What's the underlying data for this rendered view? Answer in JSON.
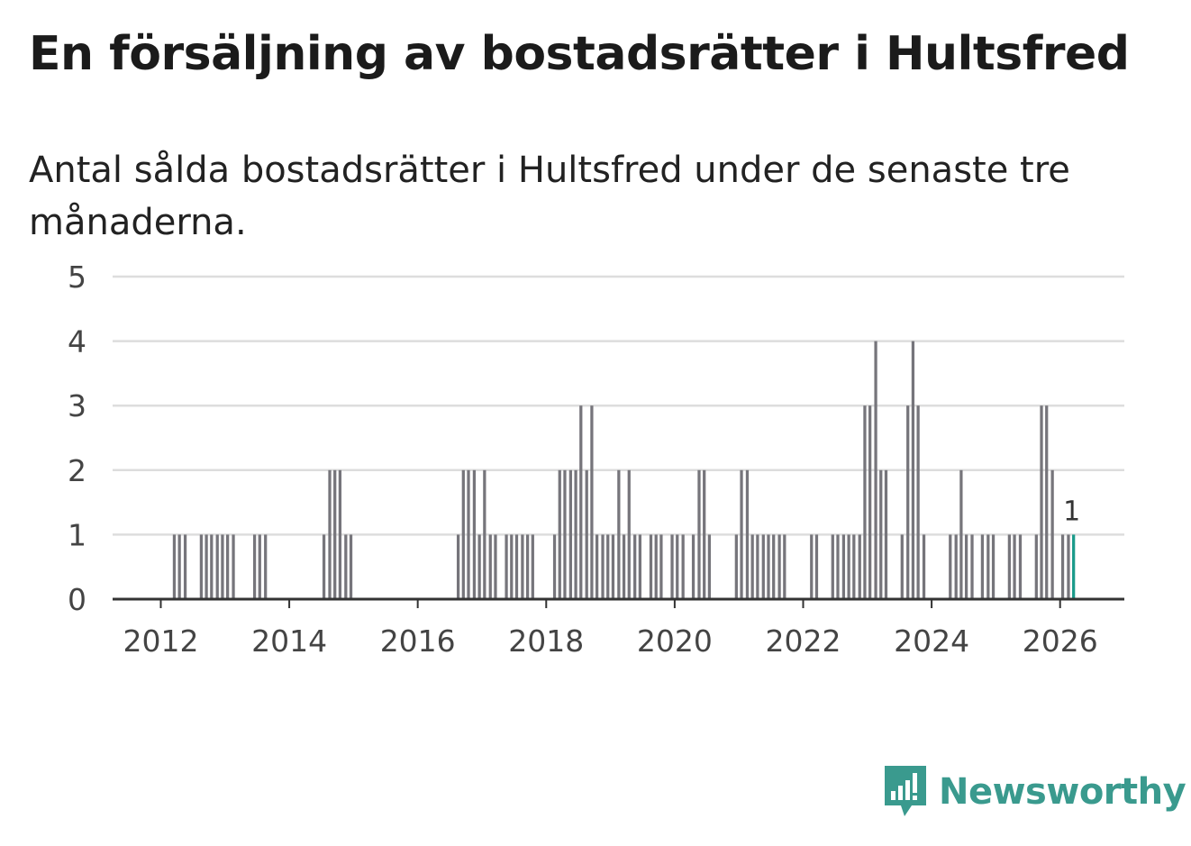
{
  "title": "En försäljning av bostadsrätter i Hultsfred",
  "subtitle": "Antal sålda bostadsrätter i Hultsfred under de senaste tre månaderna.",
  "brand": {
    "name": "Newsworthy",
    "color": "#3a9a8e",
    "icon": "bar-chart-speech-bubble-icon"
  },
  "colors": {
    "bar": "#76757b",
    "highlight": "#1a9a8a",
    "grid": "#dddddd",
    "axis": "#333333"
  },
  "chart_data": {
    "type": "bar",
    "ylim": [
      0,
      5
    ],
    "yticks": [
      0,
      1,
      2,
      3,
      4,
      5
    ],
    "xlim": [
      2011.25,
      2027.0
    ],
    "xticks": [
      2012,
      2014,
      2016,
      2018,
      2020,
      2022,
      2024,
      2026
    ],
    "grid": true,
    "bar_width_years": 0.0625,
    "series": [
      {
        "values": [
          {
            "x": 2012.21,
            "y": 1
          },
          {
            "x": 2012.29,
            "y": 1
          },
          {
            "x": 2012.38,
            "y": 1
          },
          {
            "x": 2012.63,
            "y": 1
          },
          {
            "x": 2012.71,
            "y": 1
          },
          {
            "x": 2012.79,
            "y": 1
          },
          {
            "x": 2012.88,
            "y": 1
          },
          {
            "x": 2012.96,
            "y": 1
          },
          {
            "x": 2013.04,
            "y": 1
          },
          {
            "x": 2013.13,
            "y": 1
          },
          {
            "x": 2013.46,
            "y": 1
          },
          {
            "x": 2013.54,
            "y": 1
          },
          {
            "x": 2013.63,
            "y": 1
          },
          {
            "x": 2014.54,
            "y": 1
          },
          {
            "x": 2014.63,
            "y": 2
          },
          {
            "x": 2014.71,
            "y": 2
          },
          {
            "x": 2014.79,
            "y": 2
          },
          {
            "x": 2014.88,
            "y": 1
          },
          {
            "x": 2014.96,
            "y": 1
          },
          {
            "x": 2016.63,
            "y": 1
          },
          {
            "x": 2016.71,
            "y": 2
          },
          {
            "x": 2016.79,
            "y": 2
          },
          {
            "x": 2016.88,
            "y": 2
          },
          {
            "x": 2016.96,
            "y": 1
          },
          {
            "x": 2017.04,
            "y": 2
          },
          {
            "x": 2017.13,
            "y": 1
          },
          {
            "x": 2017.21,
            "y": 1
          },
          {
            "x": 2017.38,
            "y": 1
          },
          {
            "x": 2017.46,
            "y": 1
          },
          {
            "x": 2017.54,
            "y": 1
          },
          {
            "x": 2017.63,
            "y": 1
          },
          {
            "x": 2017.71,
            "y": 1
          },
          {
            "x": 2017.79,
            "y": 1
          },
          {
            "x": 2018.13,
            "y": 1
          },
          {
            "x": 2018.21,
            "y": 2
          },
          {
            "x": 2018.29,
            "y": 2
          },
          {
            "x": 2018.38,
            "y": 2
          },
          {
            "x": 2018.46,
            "y": 2
          },
          {
            "x": 2018.54,
            "y": 3
          },
          {
            "x": 2018.63,
            "y": 2
          },
          {
            "x": 2018.71,
            "y": 3
          },
          {
            "x": 2018.79,
            "y": 1
          },
          {
            "x": 2018.88,
            "y": 1
          },
          {
            "x": 2018.96,
            "y": 1
          },
          {
            "x": 2019.04,
            "y": 1
          },
          {
            "x": 2019.13,
            "y": 2
          },
          {
            "x": 2019.21,
            "y": 1
          },
          {
            "x": 2019.29,
            "y": 2
          },
          {
            "x": 2019.38,
            "y": 1
          },
          {
            "x": 2019.46,
            "y": 1
          },
          {
            "x": 2019.63,
            "y": 1
          },
          {
            "x": 2019.71,
            "y": 1
          },
          {
            "x": 2019.79,
            "y": 1
          },
          {
            "x": 2019.96,
            "y": 1
          },
          {
            "x": 2020.04,
            "y": 1
          },
          {
            "x": 2020.13,
            "y": 1
          },
          {
            "x": 2020.29,
            "y": 1
          },
          {
            "x": 2020.38,
            "y": 2
          },
          {
            "x": 2020.46,
            "y": 2
          },
          {
            "x": 2020.54,
            "y": 1
          },
          {
            "x": 2020.96,
            "y": 1
          },
          {
            "x": 2021.04,
            "y": 2
          },
          {
            "x": 2021.13,
            "y": 2
          },
          {
            "x": 2021.21,
            "y": 1
          },
          {
            "x": 2021.29,
            "y": 1
          },
          {
            "x": 2021.38,
            "y": 1
          },
          {
            "x": 2021.46,
            "y": 1
          },
          {
            "x": 2021.54,
            "y": 1
          },
          {
            "x": 2021.63,
            "y": 1
          },
          {
            "x": 2021.71,
            "y": 1
          },
          {
            "x": 2022.13,
            "y": 1
          },
          {
            "x": 2022.21,
            "y": 1
          },
          {
            "x": 2022.46,
            "y": 1
          },
          {
            "x": 2022.54,
            "y": 1
          },
          {
            "x": 2022.63,
            "y": 1
          },
          {
            "x": 2022.71,
            "y": 1
          },
          {
            "x": 2022.79,
            "y": 1
          },
          {
            "x": 2022.88,
            "y": 1
          },
          {
            "x": 2022.96,
            "y": 3
          },
          {
            "x": 2023.04,
            "y": 3
          },
          {
            "x": 2023.13,
            "y": 4
          },
          {
            "x": 2023.21,
            "y": 2
          },
          {
            "x": 2023.29,
            "y": 2
          },
          {
            "x": 2023.54,
            "y": 1
          },
          {
            "x": 2023.63,
            "y": 3
          },
          {
            "x": 2023.71,
            "y": 4
          },
          {
            "x": 2023.79,
            "y": 3
          },
          {
            "x": 2023.88,
            "y": 1
          },
          {
            "x": 2024.29,
            "y": 1
          },
          {
            "x": 2024.38,
            "y": 1
          },
          {
            "x": 2024.46,
            "y": 2
          },
          {
            "x": 2024.54,
            "y": 1
          },
          {
            "x": 2024.63,
            "y": 1
          },
          {
            "x": 2024.79,
            "y": 1
          },
          {
            "x": 2024.88,
            "y": 1
          },
          {
            "x": 2024.96,
            "y": 1
          },
          {
            "x": 2025.21,
            "y": 1
          },
          {
            "x": 2025.29,
            "y": 1
          },
          {
            "x": 2025.38,
            "y": 1
          },
          {
            "x": 2025.63,
            "y": 1
          },
          {
            "x": 2025.71,
            "y": 3
          },
          {
            "x": 2025.79,
            "y": 3
          },
          {
            "x": 2025.88,
            "y": 2
          },
          {
            "x": 2026.04,
            "y": 1
          },
          {
            "x": 2026.13,
            "y": 1
          }
        ]
      }
    ],
    "highlight": {
      "x": 2026.21,
      "y": 1,
      "label": "1"
    }
  }
}
